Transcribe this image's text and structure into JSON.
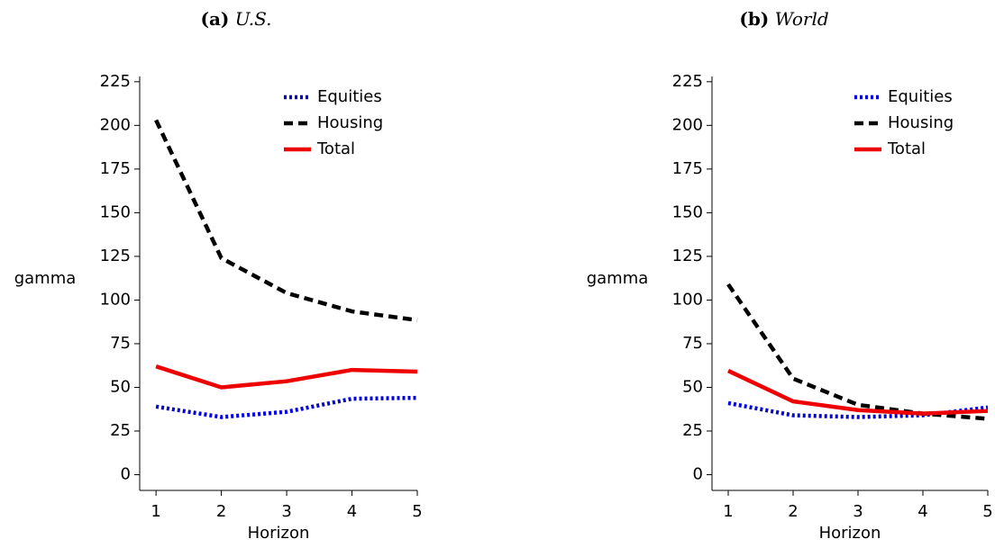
{
  "chart_data": [
    {
      "type": "line",
      "panel": "(a)",
      "title": "U.S.",
      "xlabel": "Horizon",
      "ylabel": "gamma",
      "x": [
        1,
        2,
        3,
        4,
        5
      ],
      "xlim": [
        0.75,
        5
      ],
      "xticks": [
        1,
        2,
        3,
        4,
        5
      ],
      "ylim": [
        -9,
        228
      ],
      "yticks": [
        0,
        25,
        50,
        75,
        100,
        125,
        150,
        175,
        200,
        225
      ],
      "legend": "upper right",
      "series": [
        {
          "name": "Equities",
          "color": "#0000dd",
          "style": "dotted",
          "values": [
            39,
            33,
            36,
            43.5,
            44
          ]
        },
        {
          "name": "Housing",
          "color": "#000000",
          "style": "dashed",
          "values": [
            203,
            124,
            104,
            93.5,
            88.5
          ]
        },
        {
          "name": "Total",
          "color": "#ee0000",
          "style": "solid",
          "values": [
            62,
            50,
            53.5,
            60,
            59
          ]
        }
      ]
    },
    {
      "type": "line",
      "panel": "(b)",
      "title": "World",
      "xlabel": "Horizon",
      "ylabel": "gamma",
      "x": [
        1,
        2,
        3,
        4,
        5
      ],
      "xlim": [
        0.75,
        5
      ],
      "xticks": [
        1,
        2,
        3,
        4,
        5
      ],
      "ylim": [
        -9,
        228
      ],
      "yticks": [
        0,
        25,
        50,
        75,
        100,
        125,
        150,
        175,
        200,
        225
      ],
      "legend": "upper right",
      "series": [
        {
          "name": "Equities",
          "color": "#0000dd",
          "style": "dotted",
          "values": [
            41,
            34,
            33,
            34,
            38.5
          ]
        },
        {
          "name": "Housing",
          "color": "#000000",
          "style": "dashed",
          "values": [
            109,
            55,
            40,
            35,
            32
          ]
        },
        {
          "name": "Total",
          "color": "#ee0000",
          "style": "solid",
          "values": [
            59.5,
            42,
            37,
            35,
            36.5
          ]
        }
      ]
    }
  ]
}
